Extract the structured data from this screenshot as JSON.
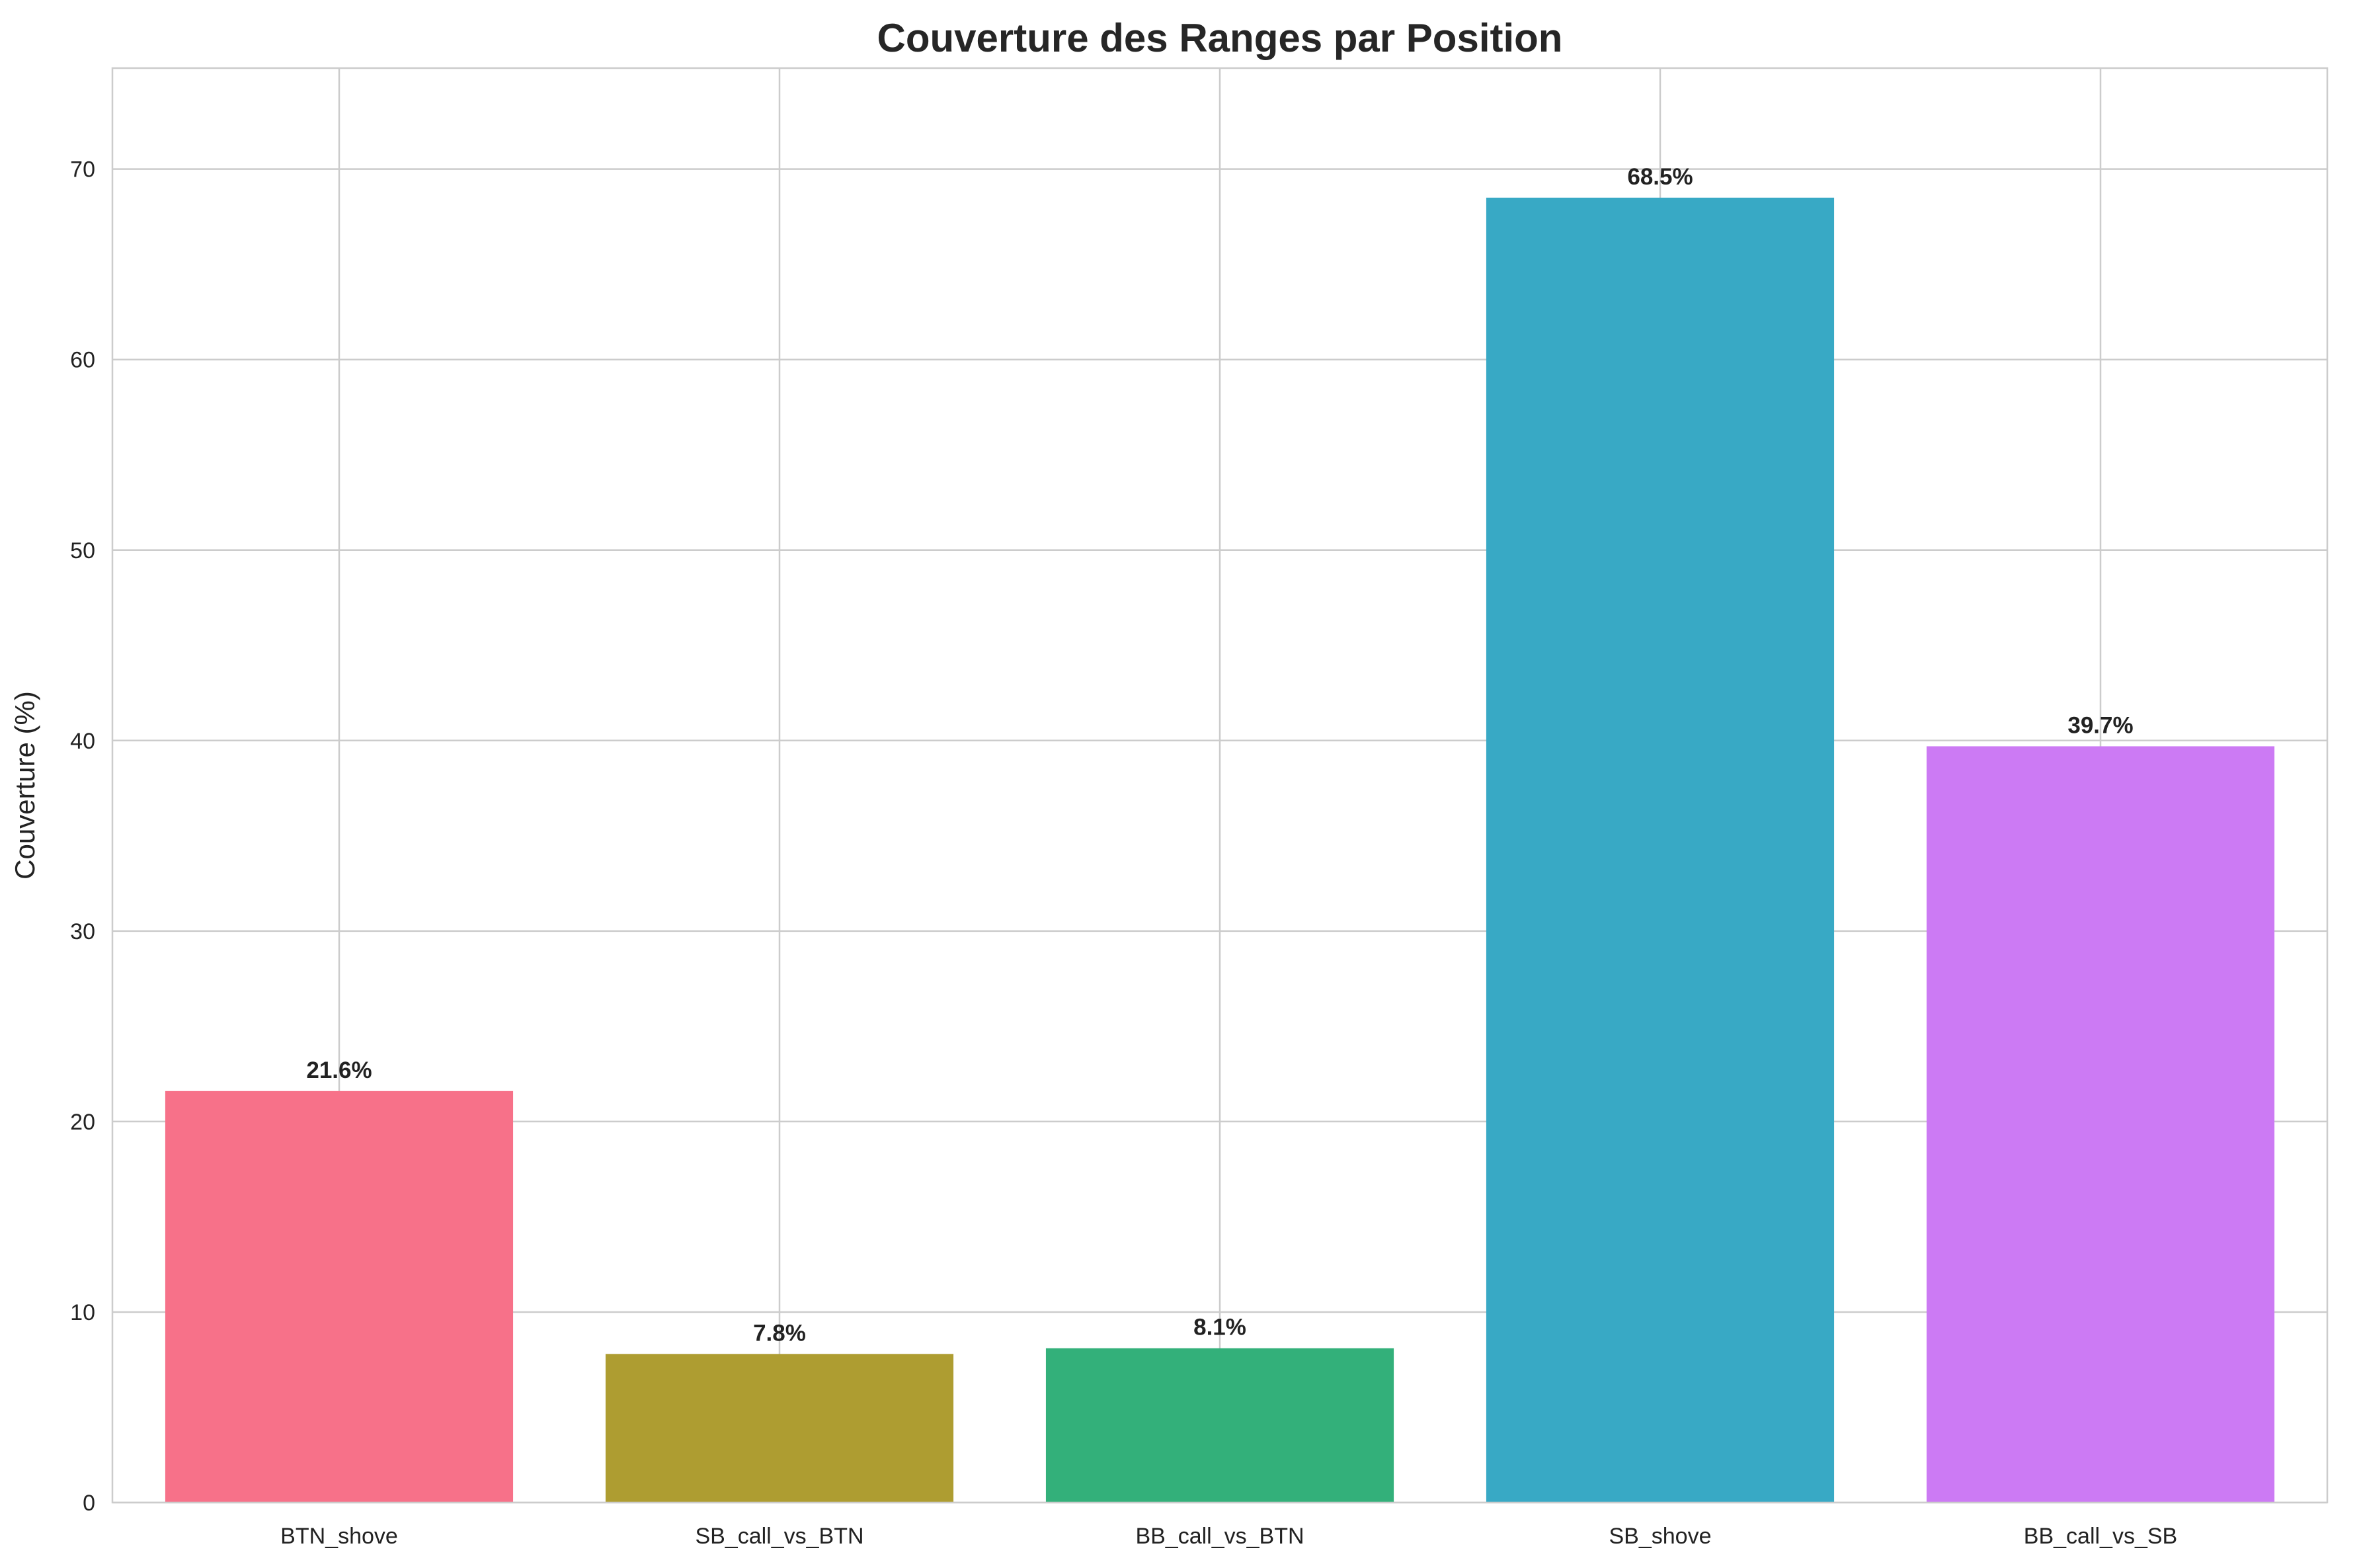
{
  "chart_data": {
    "type": "bar",
    "title": "Couverture des Ranges par Position",
    "xlabel": "",
    "ylabel": "Couverture (%)",
    "categories": [
      "BTN_shove",
      "SB_call_vs_BTN",
      "BB_call_vs_BTN",
      "SB_shove",
      "BB_call_vs_SB"
    ],
    "values": [
      21.6,
      7.8,
      8.1,
      68.5,
      39.7
    ],
    "value_labels": [
      "21.6%",
      "7.8%",
      "8.1%",
      "68.5%",
      "39.7%"
    ],
    "colors": [
      "#f77189",
      "#ae9d31",
      "#33b07a",
      "#38a9c5",
      "#cc7af4"
    ],
    "ylim": [
      0,
      75.3
    ],
    "yticks": [
      0,
      10,
      20,
      30,
      40,
      50,
      60,
      70
    ],
    "grid": true,
    "legend": "none",
    "grid_color": "#cccccc",
    "axis_color": "#cccccc"
  }
}
